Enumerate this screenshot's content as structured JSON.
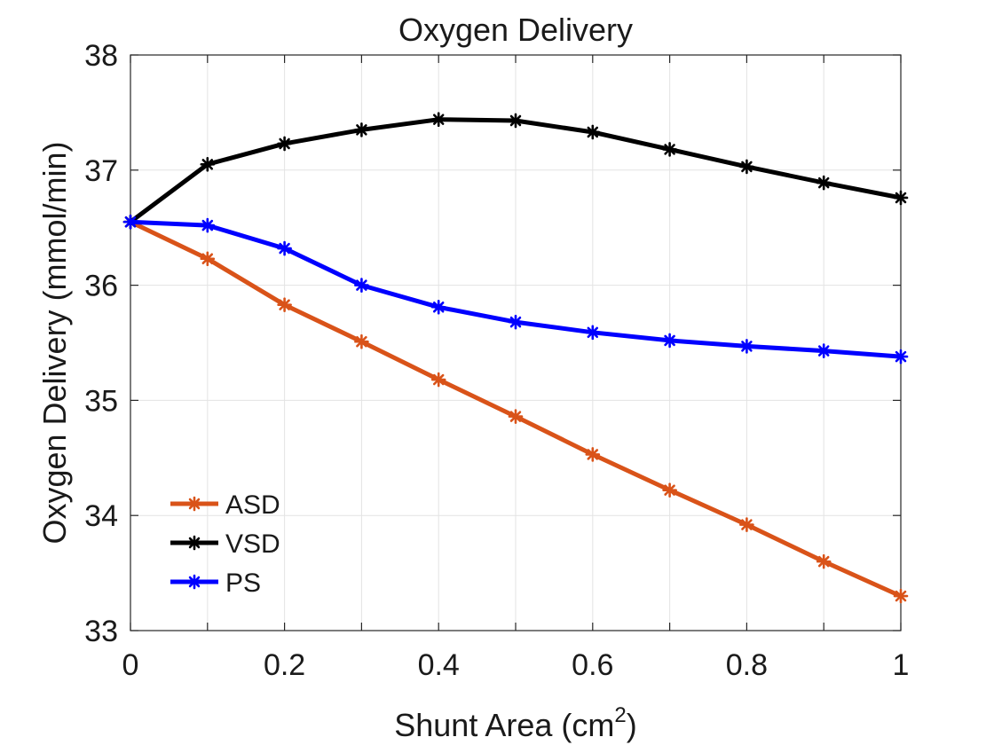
{
  "chart_data": {
    "type": "line",
    "title": "Oxygen Delivery",
    "xlabel": "Shunt Area (cm",
    "xlabel_sup": "2",
    "xlabel_end": ")",
    "ylabel": "Oxygen Delivery (mmol/min)",
    "xlim": [
      0,
      1
    ],
    "ylim": [
      33,
      38
    ],
    "x_ticks": [
      0,
      0.2,
      0.4,
      0.6,
      0.8,
      1
    ],
    "x_tick_labels": [
      "0",
      "0.2",
      "0.4",
      "0.6",
      "0.8",
      "1"
    ],
    "y_ticks": [
      33,
      34,
      35,
      36,
      37,
      38
    ],
    "y_tick_labels": [
      "33",
      "34",
      "35",
      "36",
      "37",
      "38"
    ],
    "x_grid": [
      0,
      0.1,
      0.2,
      0.3,
      0.4,
      0.5,
      0.6,
      0.7,
      0.8,
      0.9,
      1
    ],
    "y_grid": [
      33,
      34,
      35,
      36,
      37,
      38
    ],
    "grid": true,
    "legend_position": "bottom-left",
    "marker": "asterisk",
    "x": [
      0,
      0.1,
      0.2,
      0.3,
      0.4,
      0.5,
      0.6,
      0.7,
      0.8,
      0.9,
      1
    ],
    "series": [
      {
        "name": "ASD",
        "color": "#D95319",
        "values": [
          36.55,
          36.23,
          35.83,
          35.51,
          35.18,
          34.86,
          34.53,
          34.22,
          33.92,
          33.6,
          33.3
        ]
      },
      {
        "name": "VSD",
        "color": "#000000",
        "values": [
          36.55,
          37.05,
          37.23,
          37.35,
          37.44,
          37.43,
          37.33,
          37.18,
          37.03,
          36.89,
          36.76
        ]
      },
      {
        "name": "PS",
        "color": "#0000FF",
        "values": [
          36.55,
          36.52,
          36.32,
          36.0,
          35.81,
          35.68,
          35.59,
          35.52,
          35.47,
          35.43,
          35.38
        ]
      }
    ]
  }
}
